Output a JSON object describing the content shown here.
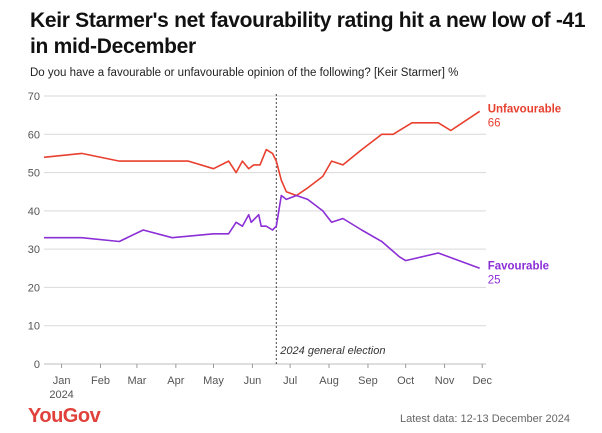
{
  "header": {
    "title": "Keir Starmer's net favourability rating hit a new low of -41 in mid-December",
    "subtitle": "Do you have a favourable or unfavourable opinion of the following? [Keir Starmer] %"
  },
  "footer": {
    "brand": "YouGov",
    "note": "Latest data: 12-13 December 2024"
  },
  "colors": {
    "unfavourable": "#e8402f",
    "favourable": "#8b2fd6",
    "grid": "#d9d9d9",
    "axis_text": "#555555"
  },
  "chart_data": {
    "type": "line",
    "title": "Keir Starmer's net favourability rating hit a new low of -41 in mid-December",
    "subtitle": "Do you have a favourable or unfavourable opinion of the following? [Keir Starmer] %",
    "ylim": [
      0,
      70
    ],
    "y_ticks": [
      0,
      10,
      20,
      30,
      40,
      50,
      60,
      70
    ],
    "xlim": [
      "2024-01-01",
      "2024-12-18"
    ],
    "x_ticks": [
      {
        "date": "2024-01-15",
        "label": "Jan",
        "sublabel": "2024"
      },
      {
        "date": "2024-02-15",
        "label": "Feb"
      },
      {
        "date": "2024-03-15",
        "label": "Mar"
      },
      {
        "date": "2024-04-15",
        "label": "Apr"
      },
      {
        "date": "2024-05-15",
        "label": "May"
      },
      {
        "date": "2024-06-15",
        "label": "Jun"
      },
      {
        "date": "2024-07-15",
        "label": "Jul"
      },
      {
        "date": "2024-08-15",
        "label": "Aug"
      },
      {
        "date": "2024-09-15",
        "label": "Sep"
      },
      {
        "date": "2024-10-15",
        "label": "Oct"
      },
      {
        "date": "2024-11-15",
        "label": "Nov"
      },
      {
        "date": "2024-12-15",
        "label": "Dec"
      }
    ],
    "grid": true,
    "annotation": {
      "date": "2024-07-04",
      "label": "2024 general election"
    },
    "series": [
      {
        "name": "Unfavourable",
        "end_label": "66",
        "color": "#e8402f",
        "points": [
          [
            "2024-01-01",
            54
          ],
          [
            "2024-01-31",
            55
          ],
          [
            "2024-03-01",
            53
          ],
          [
            "2024-04-01",
            53
          ],
          [
            "2024-04-25",
            53
          ],
          [
            "2024-05-15",
            51
          ],
          [
            "2024-05-27",
            53
          ],
          [
            "2024-06-02",
            50
          ],
          [
            "2024-06-07",
            53
          ],
          [
            "2024-06-12",
            51
          ],
          [
            "2024-06-16",
            52
          ],
          [
            "2024-06-21",
            52
          ],
          [
            "2024-06-26",
            56
          ],
          [
            "2024-07-01",
            55
          ],
          [
            "2024-07-04",
            53
          ],
          [
            "2024-07-08",
            48
          ],
          [
            "2024-07-12",
            45
          ],
          [
            "2024-07-20",
            44
          ],
          [
            "2024-07-29",
            46
          ],
          [
            "2024-08-10",
            49
          ],
          [
            "2024-08-17",
            53
          ],
          [
            "2024-08-26",
            52
          ],
          [
            "2024-09-10",
            56
          ],
          [
            "2024-09-26",
            60
          ],
          [
            "2024-10-05",
            60
          ],
          [
            "2024-10-20",
            63
          ],
          [
            "2024-11-10",
            63
          ],
          [
            "2024-11-20",
            61
          ],
          [
            "2024-12-13",
            66
          ]
        ]
      },
      {
        "name": "Favourable",
        "end_label": "25",
        "color": "#8b2fd6",
        "points": [
          [
            "2024-01-01",
            33
          ],
          [
            "2024-01-31",
            33
          ],
          [
            "2024-03-01",
            32
          ],
          [
            "2024-03-20",
            35
          ],
          [
            "2024-04-12",
            33
          ],
          [
            "2024-05-15",
            34
          ],
          [
            "2024-05-27",
            34
          ],
          [
            "2024-06-02",
            37
          ],
          [
            "2024-06-07",
            36
          ],
          [
            "2024-06-12",
            39
          ],
          [
            "2024-06-14",
            37
          ],
          [
            "2024-06-20",
            39
          ],
          [
            "2024-06-22",
            36
          ],
          [
            "2024-06-26",
            36
          ],
          [
            "2024-07-01",
            35
          ],
          [
            "2024-07-04",
            36
          ],
          [
            "2024-07-08",
            44
          ],
          [
            "2024-07-12",
            43
          ],
          [
            "2024-07-20",
            44
          ],
          [
            "2024-07-29",
            43
          ],
          [
            "2024-08-10",
            40
          ],
          [
            "2024-08-17",
            37
          ],
          [
            "2024-08-26",
            38
          ],
          [
            "2024-09-10",
            35
          ],
          [
            "2024-09-26",
            32
          ],
          [
            "2024-10-10",
            28
          ],
          [
            "2024-10-15",
            27
          ],
          [
            "2024-11-10",
            29
          ],
          [
            "2024-12-13",
            25
          ]
        ]
      }
    ]
  }
}
